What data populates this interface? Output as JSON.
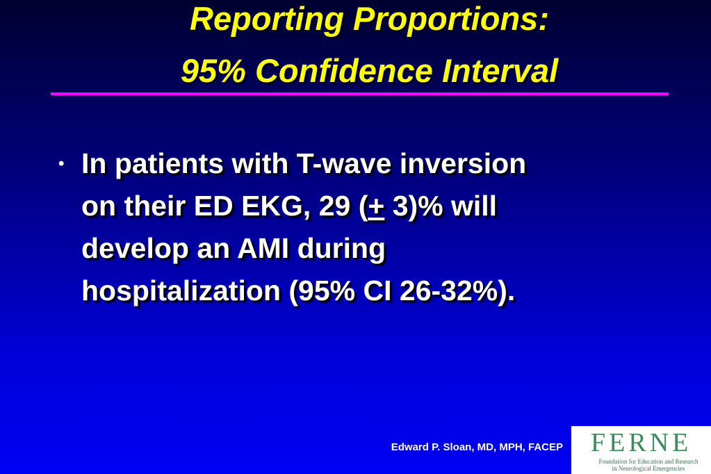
{
  "title": {
    "line1": "Reporting Proportions:",
    "line2": "95% Confidence Interval"
  },
  "bullet": {
    "line1": "In patients with T-wave inversion",
    "line2_start": "on their ED EKG, 29 (",
    "line2_mark": "+",
    "line2_end": " 3)% will",
    "line3": "develop an AMI during",
    "line4": "hospitalization (95% CI 26-32%)."
  },
  "footer": {
    "author": "Edward P. Sloan, MD, MPH, FACEP"
  },
  "logo": {
    "name": "FERNE",
    "line1": "Foundation for Education and Research",
    "line2": "in Neurological Emergencies"
  }
}
